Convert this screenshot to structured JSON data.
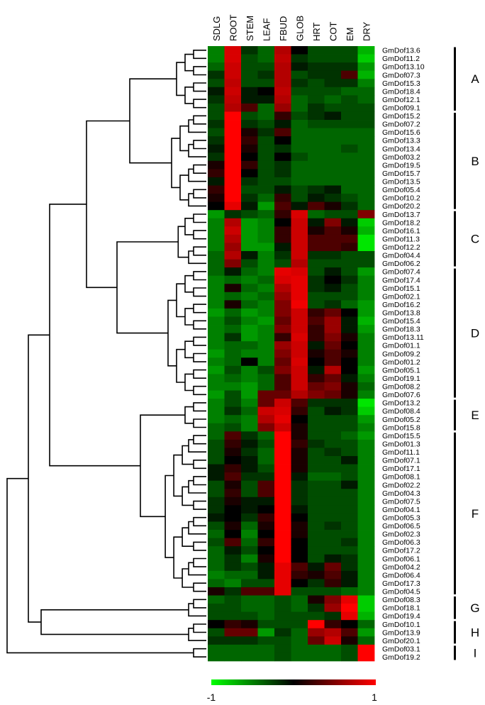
{
  "chart_data": {
    "type": "heatmap",
    "title": "",
    "columns": [
      "SDLG",
      "ROOT",
      "STEM",
      "LEAF",
      "FBUD",
      "GLOB",
      "HRT",
      "COT",
      "EM",
      "DRY"
    ],
    "rows": [
      "GmDof13.6",
      "GmDof11.2",
      "GmDof13.10",
      "GmDof07.3",
      "GmDof15.3",
      "GmDof18.4",
      "GmDof12.1",
      "GmDof09.1",
      "GmDof15.2",
      "GmDof07.2",
      "GmDof15.6",
      "GmDof13.3",
      "GmDof13.4",
      "GmDof03.2",
      "GmDof19.5",
      "GmDof15.7",
      "GmDof13.5",
      "GmDof05.4",
      "GmDof10.2",
      "GmDof20.2",
      "GmDof13.7",
      "GmDof18.2",
      "GmDof16.1",
      "GmDof11.3",
      "GmDof12.2",
      "GmDof04.4",
      "GmDof06.2",
      "GmDof07.4",
      "GmDof17.4",
      "GmDof15.1",
      "GmDof02.1",
      "GmDof16.2",
      "GmDof13.8",
      "GmDof15.4",
      "GmDof18.3",
      "GmDof13.11",
      "GmDof01.1",
      "GmDof09.2",
      "GmDof01.2",
      "GmDof05.1",
      "GmDof19.1",
      "GmDof08.2",
      "GmDof07.6",
      "GmDof13.2",
      "GmDof08.4",
      "GmDof05.2",
      "GmDof15.8",
      "GmDof15.5",
      "GmDof01.3",
      "GmDof11.1",
      "GmDof07.1",
      "GmDof17.1",
      "GmDof08.1",
      "GmDof02.2",
      "GmDof04.3",
      "GmDof07.5",
      "GmDof04.1",
      "GmDof05.3",
      "GmDof06.5",
      "GmDof02.3",
      "GmDof06.3",
      "GmDof17.2",
      "GmDof06.1",
      "GmDof04.2",
      "GmDof06.4",
      "GmDof17.3",
      "GmDof04.5",
      "GmDof08.3",
      "GmDof18.1",
      "GmDof19.4",
      "GmDof10.1",
      "GmDof13.9",
      "GmDof20.1",
      "GmDof03.1",
      "GmDof19.2"
    ],
    "values": [
      [
        -0.5,
        0.85,
        -0.2,
        -0.4,
        0.7,
        0.0,
        -0.3,
        -0.3,
        -0.3,
        -0.7
      ],
      [
        -0.5,
        0.85,
        -0.3,
        -0.4,
        0.75,
        -0.2,
        -0.3,
        -0.3,
        -0.3,
        -0.8
      ],
      [
        -0.4,
        0.8,
        -0.3,
        -0.3,
        0.7,
        -0.1,
        -0.2,
        -0.2,
        -0.2,
        -0.6
      ],
      [
        -0.2,
        0.8,
        -0.3,
        -0.2,
        0.7,
        -0.3,
        -0.2,
        -0.2,
        0.3,
        -0.7
      ],
      [
        -0.3,
        0.75,
        -0.3,
        -0.3,
        0.7,
        -0.2,
        -0.3,
        -0.2,
        -0.2,
        -0.5
      ],
      [
        -0.1,
        0.8,
        -0.1,
        0.0,
        0.75,
        -0.3,
        -0.3,
        -0.3,
        -0.4,
        -0.4
      ],
      [
        -0.2,
        0.75,
        -0.1,
        -0.1,
        0.7,
        -0.4,
        -0.3,
        -0.4,
        -0.3,
        -0.4
      ],
      [
        -0.3,
        0.7,
        0.3,
        -0.4,
        0.6,
        -0.4,
        -0.2,
        -0.3,
        -0.3,
        -0.3
      ],
      [
        -0.3,
        1.0,
        -0.3,
        -0.4,
        0.2,
        -0.3,
        -0.2,
        -0.1,
        -0.3,
        -0.3
      ],
      [
        -0.2,
        1.0,
        -0.2,
        -0.3,
        -0.1,
        -0.4,
        -0.3,
        -0.3,
        -0.3,
        -0.3
      ],
      [
        -0.3,
        1.0,
        0.1,
        -0.2,
        0.3,
        -0.4,
        -0.4,
        -0.4,
        -0.4,
        -0.4
      ],
      [
        -0.2,
        1.0,
        0.2,
        -0.3,
        0.0,
        -0.4,
        -0.4,
        -0.4,
        -0.4,
        -0.4
      ],
      [
        -0.1,
        1.0,
        0.1,
        -0.3,
        -0.2,
        -0.4,
        -0.4,
        -0.4,
        -0.3,
        -0.4
      ],
      [
        -0.2,
        1.0,
        0.0,
        -0.3,
        0.0,
        -0.3,
        -0.4,
        -0.4,
        -0.4,
        -0.4
      ],
      [
        0.1,
        1.0,
        0.2,
        -0.3,
        -0.2,
        -0.4,
        -0.4,
        -0.4,
        -0.4,
        -0.4
      ],
      [
        0.2,
        1.0,
        0.0,
        -0.3,
        -0.2,
        -0.4,
        -0.4,
        -0.4,
        -0.4,
        -0.4
      ],
      [
        -0.1,
        1.0,
        -0.2,
        -0.3,
        -0.3,
        -0.4,
        -0.4,
        -0.4,
        -0.4,
        -0.4
      ],
      [
        0.2,
        1.0,
        -0.3,
        -0.3,
        -0.1,
        -0.3,
        -0.2,
        -0.1,
        -0.4,
        -0.4
      ],
      [
        0.1,
        1.0,
        -0.2,
        -0.4,
        0.2,
        -0.3,
        -0.1,
        -0.2,
        -0.3,
        -0.4
      ],
      [
        0.0,
        0.9,
        -0.1,
        -0.6,
        0.3,
        -0.1,
        0.3,
        0.1,
        -0.2,
        -0.4
      ],
      [
        -0.6,
        -0.2,
        -0.3,
        -0.4,
        0.2,
        0.85,
        -0.4,
        -0.3,
        -0.3,
        0.5
      ],
      [
        -0.5,
        0.7,
        -0.6,
        -0.5,
        0.0,
        0.8,
        -0.1,
        0.5,
        -0.1,
        -0.8
      ],
      [
        -0.5,
        0.8,
        -0.6,
        -0.5,
        0.2,
        0.8,
        0.1,
        0.3,
        0.1,
        -0.7
      ],
      [
        -0.5,
        0.7,
        -0.6,
        -0.5,
        0.2,
        0.8,
        0.3,
        0.3,
        0.3,
        -0.9
      ],
      [
        -0.5,
        0.6,
        -0.6,
        -0.6,
        -0.1,
        0.8,
        0.3,
        0.3,
        0.2,
        -0.9
      ],
      [
        -0.4,
        0.7,
        -0.1,
        -0.5,
        -0.2,
        0.8,
        -0.2,
        -0.2,
        -0.3,
        -0.3
      ],
      [
        -0.4,
        0.5,
        -0.3,
        -0.5,
        -0.3,
        0.7,
        -0.3,
        -0.3,
        -0.3,
        -0.3
      ],
      [
        -0.4,
        -0.1,
        -0.4,
        -0.5,
        0.9,
        0.85,
        -0.3,
        -0.1,
        -0.3,
        -0.6
      ],
      [
        -0.5,
        -0.4,
        -0.5,
        -0.4,
        0.85,
        0.9,
        -0.2,
        0.0,
        -0.2,
        -0.5
      ],
      [
        -0.5,
        0.1,
        -0.4,
        -0.5,
        0.7,
        0.9,
        -0.2,
        -0.1,
        -0.3,
        -0.5
      ],
      [
        -0.5,
        -0.4,
        -0.5,
        -0.4,
        0.6,
        0.9,
        -0.3,
        -0.3,
        -0.3,
        -0.5
      ],
      [
        -0.5,
        0.1,
        -0.4,
        -0.5,
        0.5,
        0.95,
        -0.3,
        -0.2,
        -0.4,
        -0.6
      ],
      [
        -0.6,
        -0.4,
        -0.6,
        -0.5,
        0.5,
        0.8,
        0.2,
        0.4,
        0.0,
        -0.6
      ],
      [
        -0.5,
        -0.3,
        -0.5,
        -0.6,
        0.4,
        0.8,
        0.3,
        0.6,
        -0.1,
        -0.7
      ],
      [
        -0.5,
        -0.4,
        -0.6,
        -0.5,
        0.5,
        0.8,
        0.2,
        0.6,
        -0.1,
        -0.6
      ],
      [
        -0.5,
        -0.2,
        -0.6,
        -0.5,
        0.2,
        0.85,
        0.2,
        0.5,
        0.1,
        -0.5
      ],
      [
        -0.5,
        -0.4,
        -0.4,
        -0.5,
        0.6,
        0.8,
        -0.1,
        0.4,
        0.0,
        -0.5
      ],
      [
        -0.6,
        -0.4,
        -0.5,
        -0.5,
        0.5,
        0.8,
        0.1,
        0.3,
        0.1,
        -0.5
      ],
      [
        -0.5,
        -0.4,
        0.0,
        -0.5,
        0.4,
        0.85,
        0.0,
        0.3,
        0.0,
        -0.5
      ],
      [
        -0.6,
        -0.3,
        -0.5,
        -0.3,
        0.5,
        0.8,
        -0.1,
        0.7,
        0.0,
        -0.6
      ],
      [
        -0.5,
        -0.4,
        -0.5,
        -0.4,
        0.3,
        0.8,
        0.2,
        0.4,
        -0.1,
        -0.5
      ],
      [
        -0.5,
        -0.5,
        -0.6,
        -0.4,
        0.3,
        0.8,
        0.4,
        0.5,
        0.1,
        -0.4
      ],
      [
        -0.6,
        -0.3,
        -0.6,
        0.4,
        0.4,
        0.7,
        0.5,
        0.4,
        0.1,
        -0.5
      ],
      [
        -0.5,
        -0.3,
        -0.5,
        0.4,
        0.8,
        0.3,
        -0.2,
        -0.2,
        -0.2,
        -0.9
      ],
      [
        -0.5,
        -0.2,
        -0.4,
        0.8,
        0.85,
        0.2,
        -0.3,
        -0.1,
        -0.2,
        -0.8
      ],
      [
        -0.5,
        -0.4,
        -0.5,
        0.7,
        0.9,
        0.0,
        -0.3,
        -0.3,
        -0.3,
        -0.6
      ],
      [
        -0.4,
        -0.3,
        -0.5,
        0.5,
        0.8,
        0.1,
        -0.3,
        -0.3,
        -0.3,
        -0.5
      ],
      [
        -0.4,
        0.3,
        -0.2,
        -0.4,
        1.0,
        0.1,
        -0.3,
        -0.3,
        -0.4,
        -0.6
      ],
      [
        -0.3,
        0.2,
        -0.1,
        -0.3,
        1.0,
        0.2,
        -0.2,
        -0.3,
        -0.3,
        -0.5
      ],
      [
        -0.3,
        0.1,
        -0.2,
        -0.4,
        1.0,
        0.1,
        -0.3,
        -0.2,
        -0.3,
        -0.5
      ],
      [
        -0.3,
        0.0,
        -0.1,
        -0.4,
        1.0,
        0.1,
        -0.3,
        -0.3,
        -0.1,
        -0.5
      ],
      [
        -0.1,
        0.2,
        -0.1,
        -0.3,
        1.0,
        0.1,
        -0.3,
        -0.3,
        -0.3,
        -0.5
      ],
      [
        -0.1,
        0.3,
        -0.2,
        -0.2,
        1.0,
        -0.1,
        -0.4,
        -0.4,
        -0.3,
        -0.5
      ],
      [
        -0.3,
        0.1,
        -0.3,
        0.3,
        1.0,
        -0.2,
        -0.3,
        -0.3,
        -0.1,
        -0.5
      ],
      [
        -0.3,
        0.2,
        -0.3,
        0.3,
        1.0,
        -0.2,
        -0.3,
        -0.3,
        -0.3,
        -0.5
      ],
      [
        -0.2,
        0.1,
        -0.1,
        -0.1,
        1.0,
        -0.2,
        -0.3,
        -0.3,
        -0.3,
        -0.5
      ],
      [
        -0.2,
        0.0,
        -0.1,
        0.0,
        1.0,
        -0.1,
        -0.3,
        -0.3,
        -0.3,
        -0.5
      ],
      [
        -0.1,
        0.0,
        -0.2,
        0.2,
        1.0,
        0.0,
        -0.3,
        -0.3,
        -0.3,
        -0.5
      ],
      [
        -0.3,
        0.1,
        -0.4,
        0.1,
        1.0,
        0.1,
        -0.3,
        -0.2,
        -0.3,
        -0.5
      ],
      [
        -0.4,
        0.0,
        -0.5,
        0.0,
        1.0,
        0.1,
        -0.3,
        -0.3,
        -0.3,
        -0.5
      ],
      [
        -0.3,
        0.3,
        -0.4,
        0.2,
        1.0,
        0.0,
        -0.3,
        -0.3,
        -0.2,
        -0.5
      ],
      [
        -0.4,
        -0.1,
        -0.3,
        0.0,
        1.0,
        0.0,
        -0.3,
        -0.3,
        -0.3,
        -0.5
      ],
      [
        -0.4,
        -0.2,
        -0.5,
        0.1,
        1.0,
        0.0,
        -0.3,
        -0.1,
        -0.2,
        -0.5
      ],
      [
        -0.4,
        -0.2,
        -0.3,
        -0.1,
        0.9,
        0.3,
        -0.1,
        0.4,
        -0.2,
        -0.5
      ],
      [
        -0.5,
        -0.4,
        -0.4,
        -0.1,
        0.9,
        0.2,
        0.1,
        0.3,
        -0.1,
        -0.5
      ],
      [
        -0.4,
        -0.5,
        -0.3,
        -0.3,
        0.9,
        0.0,
        -0.2,
        0.2,
        -0.1,
        -0.5
      ],
      [
        0.1,
        -0.2,
        0.3,
        0.3,
        0.9,
        -0.3,
        -0.3,
        -0.3,
        -0.4,
        -0.5
      ],
      [
        -0.4,
        -0.3,
        -0.4,
        -0.4,
        -0.3,
        -0.4,
        0.1,
        0.5,
        0.9,
        -0.8
      ],
      [
        -0.3,
        -0.3,
        -0.4,
        -0.4,
        -0.3,
        -0.4,
        -0.2,
        0.6,
        1.0,
        -0.8
      ],
      [
        -0.3,
        -0.3,
        -0.3,
        -0.4,
        -0.3,
        -0.3,
        -0.3,
        -0.2,
        0.9,
        -0.7
      ],
      [
        0.0,
        0.2,
        0.1,
        -0.3,
        -0.3,
        -0.3,
        1.0,
        0.2,
        0.0,
        -0.4
      ],
      [
        -0.3,
        0.4,
        0.4,
        -0.6,
        -0.2,
        -0.4,
        0.6,
        0.7,
        0.3,
        -0.6
      ],
      [
        -0.2,
        -0.2,
        -0.2,
        -0.3,
        -0.3,
        -0.4,
        0.4,
        0.8,
        0.1,
        -0.4
      ],
      [
        -0.4,
        -0.4,
        -0.4,
        -0.4,
        -0.3,
        -0.4,
        -0.4,
        -0.4,
        -0.3,
        1.0
      ],
      [
        -0.4,
        -0.4,
        -0.4,
        -0.4,
        -0.3,
        -0.4,
        -0.4,
        -0.4,
        -0.3,
        1.0
      ]
    ],
    "groups": [
      {
        "label": "A",
        "from": 0,
        "to": 7
      },
      {
        "label": "B",
        "from": 8,
        "to": 19
      },
      {
        "label": "C",
        "from": 20,
        "to": 26
      },
      {
        "label": "D",
        "from": 27,
        "to": 42
      },
      {
        "label": "E",
        "from": 43,
        "to": 46
      },
      {
        "label": "F",
        "from": 47,
        "to": 66
      },
      {
        "label": "G",
        "from": 67,
        "to": 69
      },
      {
        "label": "H",
        "from": 70,
        "to": 72
      },
      {
        "label": "I",
        "from": 73,
        "to": 74
      }
    ],
    "color_scale": {
      "min": -1,
      "max": 1,
      "min_label": "-1",
      "max_label": "1",
      "colors": [
        "#00ff00",
        "#000000",
        "#ff0000"
      ]
    },
    "dendrogram": "row"
  }
}
